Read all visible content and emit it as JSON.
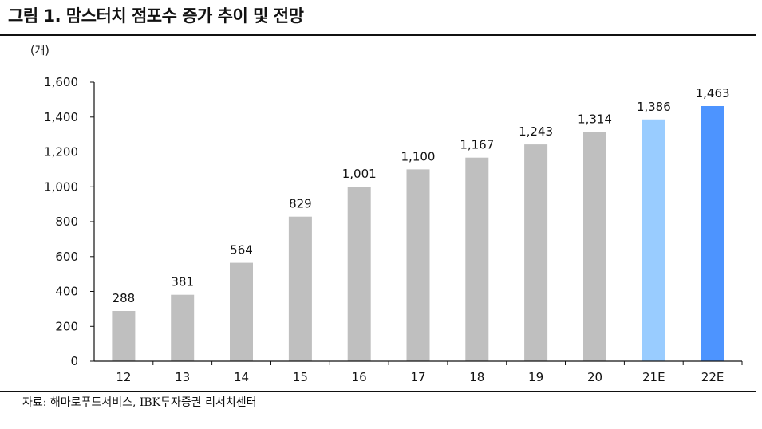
{
  "figure": {
    "title": "그림 1. 맘스터치 점포수 증가 추이 및 전망",
    "source": "자료: 해마로푸드서비스, IBK투자증권 리서치센터"
  },
  "chart_data": {
    "type": "bar",
    "title": "그림 1. 맘스터치 점포수 증가 추이 및 전망",
    "ylabel": "(개)",
    "xlabel": "",
    "ylim": [
      0,
      1600
    ],
    "yticks": [
      0,
      200,
      400,
      600,
      800,
      1000,
      1200,
      1400,
      1600
    ],
    "ytick_labels": [
      "0",
      "200",
      "400",
      "600",
      "800",
      "1,000",
      "1,200",
      "1,400",
      "1,600"
    ],
    "categories": [
      "12",
      "13",
      "14",
      "15",
      "16",
      "17",
      "18",
      "19",
      "20",
      "21E",
      "22E"
    ],
    "values": [
      288,
      381,
      564,
      829,
      1001,
      1100,
      1167,
      1243,
      1314,
      1386,
      1463
    ],
    "value_labels": [
      "288",
      "381",
      "564",
      "829",
      "1,001",
      "1,100",
      "1,167",
      "1,243",
      "1,314",
      "1,386",
      "1,463"
    ],
    "bar_colors": [
      "#bfbfbf",
      "#bfbfbf",
      "#bfbfbf",
      "#bfbfbf",
      "#bfbfbf",
      "#bfbfbf",
      "#bfbfbf",
      "#bfbfbf",
      "#bfbfbf",
      "#99ccff",
      "#4d94ff"
    ],
    "axis_color": "#111111",
    "grid": false,
    "legend": "none"
  }
}
